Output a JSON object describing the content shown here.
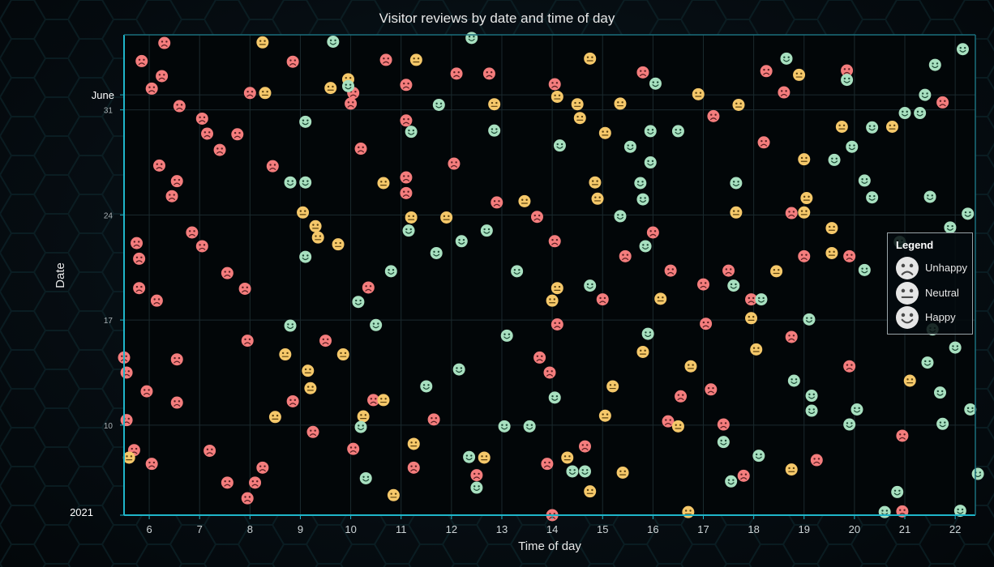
{
  "chart_data": {
    "type": "scatter",
    "title": "Visitor reviews by date and time of day",
    "xlabel": "Time of day",
    "ylabel": "Date",
    "xlim": [
      5.5,
      22.4
    ],
    "x_ticks": [
      6,
      7,
      8,
      9,
      10,
      11,
      12,
      13,
      14,
      15,
      16,
      17,
      18,
      19,
      20,
      21,
      22
    ],
    "y_domain": [
      "2021-05-04",
      "2021-06-05"
    ],
    "y_ticks": [
      {
        "date": "2021-05-04",
        "label": "2021",
        "style": "major"
      },
      {
        "date": "2021-05-10",
        "label": "10",
        "style": "minor"
      },
      {
        "date": "2021-05-17",
        "label": "17",
        "style": "minor"
      },
      {
        "date": "2021-05-24",
        "label": "24",
        "style": "minor"
      },
      {
        "date": "2021-05-31",
        "label": "31",
        "style": "minor"
      },
      {
        "date": "2021-06-01",
        "label": "June",
        "style": "major"
      }
    ],
    "grid": true,
    "legend_position": "right",
    "legend": {
      "title": "Legend",
      "items": [
        {
          "name": "Unhappy",
          "mood": "sad"
        },
        {
          "name": "Neutral",
          "mood": "neutral"
        },
        {
          "name": "Happy",
          "mood": "happy"
        }
      ]
    },
    "series": [
      {
        "name": "Unhappy",
        "color": "#f47d7d",
        "points": [
          [
            5.5,
            "2021-05-14 12:00"
          ],
          [
            5.55,
            "2021-05-13 12:00"
          ],
          [
            5.55,
            "2021-05-10 08:00"
          ],
          [
            5.7,
            "2021-05-08 08:00"
          ],
          [
            5.75,
            "2021-05-22 03:00"
          ],
          [
            5.8,
            "2021-05-21 02:00"
          ],
          [
            5.8,
            "2021-05-19 03:00"
          ],
          [
            5.85,
            "2021-06-03 06:00"
          ],
          [
            5.95,
            "2021-05-12 06:00"
          ],
          [
            6.05,
            "2021-06-01 10:00"
          ],
          [
            6.05,
            "2021-05-07 10:00"
          ],
          [
            6.15,
            "2021-05-18 07:00"
          ],
          [
            6.2,
            "2021-05-27 07:00"
          ],
          [
            6.25,
            "2021-06-02 06:00"
          ],
          [
            6.3,
            "2021-06-04 11:00"
          ],
          [
            6.45,
            "2021-05-25 06:00"
          ],
          [
            6.55,
            "2021-05-26 06:00"
          ],
          [
            6.55,
            "2021-05-14 09:00"
          ],
          [
            6.55,
            "2021-05-11 12:00"
          ],
          [
            6.6,
            "2021-05-31 06:00"
          ],
          [
            6.85,
            "2021-05-22 20:00"
          ],
          [
            7.05,
            "2021-05-30 10:00"
          ],
          [
            7.05,
            "2021-05-21 22:00"
          ],
          [
            7.15,
            "2021-05-29 10:00"
          ],
          [
            7.2,
            "2021-05-08 07:00"
          ],
          [
            7.4,
            "2021-05-28 08:00"
          ],
          [
            7.55,
            "2021-05-20 03:00"
          ],
          [
            7.55,
            "2021-05-06 04:00"
          ],
          [
            7.75,
            "2021-05-29 09:00"
          ],
          [
            7.9,
            "2021-05-19 02:00"
          ],
          [
            7.95,
            "2021-05-05 03:00"
          ],
          [
            7.95,
            "2021-05-15 15:00"
          ],
          [
            8.0,
            "2021-06-01 03:00"
          ],
          [
            8.1,
            "2021-05-06 04:00"
          ],
          [
            8.25,
            "2021-05-07 04:00"
          ],
          [
            8.45,
            "2021-05-27 06:00"
          ],
          [
            8.85,
            "2021-06-03 05:00"
          ],
          [
            8.85,
            "2021-05-11 14:00"
          ],
          [
            9.25,
            "2021-05-09 13:00"
          ],
          [
            9.5,
            "2021-05-15 15:00"
          ],
          [
            10.0,
            "2021-05-31 10:00"
          ],
          [
            10.05,
            "2021-06-01 03:00"
          ],
          [
            10.05,
            "2021-05-08 10:00"
          ],
          [
            10.2,
            "2021-05-28 10:00"
          ],
          [
            10.35,
            "2021-05-19 04:00"
          ],
          [
            10.45,
            "2021-05-11 16:00"
          ],
          [
            10.7,
            "2021-06-03 08:00"
          ],
          [
            11.1,
            "2021-06-01 16:00"
          ],
          [
            11.1,
            "2021-05-30 07:00"
          ],
          [
            11.1,
            "2021-05-26 12:00"
          ],
          [
            11.1,
            "2021-05-25 11:00"
          ],
          [
            11.25,
            "2021-05-07 04:00"
          ],
          [
            11.65,
            "2021-05-10 09:00"
          ],
          [
            12.05,
            "2021-05-27 10:00"
          ],
          [
            12.1,
            "2021-06-02 10:00"
          ],
          [
            12.5,
            "2021-05-06 16:00"
          ],
          [
            12.75,
            "2021-06-02 10:00"
          ],
          [
            12.9,
            "2021-05-24 20:00"
          ],
          [
            13.7,
            "2021-05-23 21:00"
          ],
          [
            13.75,
            "2021-05-14 12:00"
          ],
          [
            13.9,
            "2021-05-07 10:00"
          ],
          [
            13.95,
            "2021-05-13 12:00"
          ],
          [
            14.0,
            "2021-05-04"
          ],
          [
            14.05,
            "2021-06-01 17:00"
          ],
          [
            14.05,
            "2021-05-22 06:00"
          ],
          [
            14.1,
            "2021-05-16 17:00"
          ],
          [
            14.65,
            "2021-05-08 14:00"
          ],
          [
            15.0,
            "2021-05-18 09:00"
          ],
          [
            15.45,
            "2021-05-21 06:00"
          ],
          [
            15.8,
            "2021-06-02 12:00"
          ],
          [
            16.0,
            "2021-05-22 20:00"
          ],
          [
            16.3,
            "2021-05-10 06:00"
          ],
          [
            16.35,
            "2021-05-20 07:00"
          ],
          [
            16.55,
            "2021-05-11 22:00"
          ],
          [
            17.0,
            "2021-05-19 09:00"
          ],
          [
            17.05,
            "2021-05-16 18:00"
          ],
          [
            17.15,
            "2021-05-12 09:00"
          ],
          [
            17.2,
            "2021-05-30 14:00"
          ],
          [
            17.4,
            "2021-05-10 01:00"
          ],
          [
            17.5,
            "2021-05-20 07:00"
          ],
          [
            17.8,
            "2021-05-06 15:00"
          ],
          [
            17.95,
            "2021-05-18 09:00"
          ],
          [
            18.2,
            "2021-05-28 20:00"
          ],
          [
            18.25,
            "2021-06-02 14:00"
          ],
          [
            18.6,
            "2021-06-01 04:00"
          ],
          [
            18.75,
            "2021-05-24 03:00"
          ],
          [
            18.75,
            "2021-05-15 21:00"
          ],
          [
            19.0,
            "2021-05-21 06:00"
          ],
          [
            19.25,
            "2021-05-07 16:00"
          ],
          [
            19.85,
            "2021-06-02 15:00"
          ],
          [
            19.9,
            "2021-05-21 06:00"
          ],
          [
            19.9,
            "2021-05-13 22:00"
          ],
          [
            20.95,
            "2021-05-09 07:00"
          ],
          [
            20.95,
            "2021-05-04 06:00"
          ],
          [
            21.75,
            "2021-05-31 12:00"
          ]
        ]
      },
      {
        "name": "Neutral",
        "color": "#f5c86a",
        "points": [
          [
            5.6,
            "2021-05-07 20:00"
          ],
          [
            8.25,
            "2021-06-04 12:00"
          ],
          [
            8.3,
            "2021-06-01 03:00"
          ],
          [
            8.5,
            "2021-05-10 13:00"
          ],
          [
            8.7,
            "2021-05-14 17:00"
          ],
          [
            9.15,
            "2021-05-13 15:00"
          ],
          [
            9.2,
            "2021-05-12 11:00"
          ],
          [
            9.05,
            "2021-05-24 04:00"
          ],
          [
            9.3,
            "2021-05-23 06:00"
          ],
          [
            9.35,
            "2021-05-22 12:00"
          ],
          [
            9.6,
            "2021-06-01 11:00"
          ],
          [
            9.75,
            "2021-05-22 01:00"
          ],
          [
            9.85,
            "2021-05-14 17:00"
          ],
          [
            9.95,
            "2021-06-02 01:00"
          ],
          [
            10.25,
            "2021-05-10 14:00"
          ],
          [
            10.65,
            "2021-05-26 03:00"
          ],
          [
            10.65,
            "2021-05-11 16:00"
          ],
          [
            10.85,
            "2021-05-05 08:00"
          ],
          [
            11.2,
            "2021-05-23 20:00"
          ],
          [
            11.25,
            "2021-05-08 18:00"
          ],
          [
            11.3,
            "2021-06-03 08:00"
          ],
          [
            11.9,
            "2021-05-23 20:00"
          ],
          [
            12.65,
            "2021-05-07 20:00"
          ],
          [
            12.85,
            "2021-05-31 09:00"
          ],
          [
            13.45,
            "2021-05-24 22:00"
          ],
          [
            14.0,
            "2021-05-18 07:00"
          ],
          [
            14.1,
            "2021-05-19 03:00"
          ],
          [
            14.1,
            "2021-05-31 21:00"
          ],
          [
            14.3,
            "2021-05-07 20:00"
          ],
          [
            14.5,
            "2021-05-31 09:00"
          ],
          [
            14.55,
            "2021-05-30 11:00"
          ],
          [
            14.75,
            "2021-05-05 14:00"
          ],
          [
            14.75,
            "2021-06-03 10:00"
          ],
          [
            14.85,
            "2021-05-26 04:00"
          ],
          [
            14.9,
            "2021-05-25 02:00"
          ],
          [
            15.05,
            "2021-05-10 15:00"
          ],
          [
            15.05,
            "2021-05-29 11:00"
          ],
          [
            15.2,
            "2021-05-12 14:00"
          ],
          [
            15.35,
            "2021-05-31 10:00"
          ],
          [
            15.4,
            "2021-05-06 20:00"
          ],
          [
            15.8,
            "2021-05-14 21:00"
          ],
          [
            16.15,
            "2021-05-18 10:00"
          ],
          [
            16.5,
            "2021-05-09 22:00"
          ],
          [
            16.7,
            "2021-05-04 05:00"
          ],
          [
            16.75,
            "2021-05-13 22:00"
          ],
          [
            16.9,
            "2021-06-01 01:00"
          ],
          [
            17.65,
            "2021-05-24 04:00"
          ],
          [
            17.7,
            "2021-05-31 08:00"
          ],
          [
            17.95,
            "2021-05-17 03:00"
          ],
          [
            18.05,
            "2021-05-15 01:00"
          ],
          [
            18.45,
            "2021-05-20 06:00"
          ],
          [
            18.75,
            "2021-05-07 01:00"
          ],
          [
            18.9,
            "2021-06-02 08:00"
          ],
          [
            19.0,
            "2021-05-27 17:00"
          ],
          [
            19.0,
            "2021-05-24 04:00"
          ],
          [
            19.05,
            "2021-05-25 03:00"
          ],
          [
            19.55,
            "2021-05-23 03:00"
          ],
          [
            19.55,
            "2021-05-21 11:00"
          ],
          [
            19.75,
            "2021-05-29 21:00"
          ],
          [
            20.75,
            "2021-05-29 21:00"
          ],
          [
            21.1,
            "2021-05-12 23:00"
          ]
        ]
      },
      {
        "name": "Happy",
        "color": "#a8e0c0",
        "points": [
          [
            9.1,
            "2021-05-30 05:00"
          ],
          [
            9.1,
            "2021-05-26 04:00"
          ],
          [
            8.8,
            "2021-05-26 04:00"
          ],
          [
            8.8,
            "2021-05-16 15:00"
          ],
          [
            9.1,
            "2021-05-21 05:00"
          ],
          [
            9.65,
            "2021-06-04 13:00"
          ],
          [
            9.95,
            "2021-06-01 14:00"
          ],
          [
            10.15,
            "2021-05-18 05:00"
          ],
          [
            10.2,
            "2021-05-09 21:00"
          ],
          [
            10.3,
            "2021-05-06 11:00"
          ],
          [
            10.5,
            "2021-05-16 16:00"
          ],
          [
            10.8,
            "2021-05-20 06:00"
          ],
          [
            11.15,
            "2021-05-22 23:00"
          ],
          [
            11.2,
            "2021-05-29 13:00"
          ],
          [
            11.5,
            "2021-05-12 14:00"
          ],
          [
            11.7,
            "2021-05-21 11:00"
          ],
          [
            11.75,
            "2021-05-31 08:00"
          ],
          [
            12.15,
            "2021-05-13 17:00"
          ],
          [
            12.2,
            "2021-05-22 06:00"
          ],
          [
            12.35,
            "2021-05-07 21:00"
          ],
          [
            12.4,
            "2021-06-04 19:00"
          ],
          [
            12.5,
            "2021-05-05 20:00"
          ],
          [
            12.7,
            "2021-05-22 23:00"
          ],
          [
            12.85,
            "2021-05-29 15:00"
          ],
          [
            13.05,
            "2021-05-09 22:00"
          ],
          [
            13.1,
            "2021-05-15 23:00"
          ],
          [
            13.3,
            "2021-05-20 06:00"
          ],
          [
            13.55,
            "2021-05-09 22:00"
          ],
          [
            14.05,
            "2021-05-11 20:00"
          ],
          [
            14.15,
            "2021-05-28 15:00"
          ],
          [
            14.4,
            "2021-05-06 22:00"
          ],
          [
            14.65,
            "2021-05-06 22:00"
          ],
          [
            14.75,
            "2021-05-19 07:00"
          ],
          [
            15.35,
            "2021-05-23 22:00"
          ],
          [
            15.55,
            "2021-05-28 13:00"
          ],
          [
            15.75,
            "2021-05-26 03:00"
          ],
          [
            15.8,
            "2021-05-25 01:00"
          ],
          [
            15.85,
            "2021-05-21 22:00"
          ],
          [
            15.9,
            "2021-05-16 02:00"
          ],
          [
            15.95,
            "2021-05-29 14:00"
          ],
          [
            15.95,
            "2021-05-27 12:00"
          ],
          [
            16.05,
            "2021-06-01 18:00"
          ],
          [
            16.5,
            "2021-05-29 14:00"
          ],
          [
            17.4,
            "2021-05-08 21:00"
          ],
          [
            17.55,
            "2021-05-06 06:00"
          ],
          [
            17.6,
            "2021-05-19 07:00"
          ],
          [
            17.65,
            "2021-05-26 03:00"
          ],
          [
            18.1,
            "2021-05-07 23:00"
          ],
          [
            18.15,
            "2021-05-18 09:00"
          ],
          [
            18.65,
            "2021-06-03 10:00"
          ],
          [
            18.8,
            "2021-05-12 23:00"
          ],
          [
            19.1,
            "2021-05-17 01:00"
          ],
          [
            19.15,
            "2021-05-11 23:00"
          ],
          [
            19.15,
            "2021-05-10 23:00"
          ],
          [
            19.6,
            "2021-05-27 16:00"
          ],
          [
            19.85,
            "2021-06-02 00:00"
          ],
          [
            19.9,
            "2021-05-10 01:00"
          ],
          [
            19.95,
            "2021-05-28 13:00"
          ],
          [
            20.05,
            "2021-05-11 01:00"
          ],
          [
            20.2,
            "2021-05-20 08:00"
          ],
          [
            20.2,
            "2021-05-26 07:00"
          ],
          [
            20.35,
            "2021-05-29 20:00"
          ],
          [
            20.35,
            "2021-05-25 04:00"
          ],
          [
            20.6,
            "2021-05-04 05:00"
          ],
          [
            20.85,
            "2021-05-05 13:00"
          ],
          [
            20.9,
            "2021-05-22 05:00"
          ],
          [
            21.0,
            "2021-05-30 19:00"
          ],
          [
            21.3,
            "2021-05-30 19:00"
          ],
          [
            21.4,
            "2021-06-01 00:00"
          ],
          [
            21.45,
            "2021-05-14 04:00"
          ],
          [
            21.5,
            "2021-05-25 05:00"
          ],
          [
            21.6,
            "2021-06-03 00:00"
          ],
          [
            21.55,
            "2021-05-16 09:00"
          ],
          [
            21.7,
            "2021-05-12 04:00"
          ],
          [
            21.75,
            "2021-05-10 02:00"
          ],
          [
            21.9,
            "2021-05-23 04:00"
          ],
          [
            22.0,
            "2021-05-15 04:00"
          ],
          [
            22.1,
            "2021-05-04 07:00"
          ],
          [
            22.15,
            "2021-06-04 01:00"
          ],
          [
            22.25,
            "2021-05-24 02:00"
          ],
          [
            22.3,
            "2021-05-11 01:00"
          ],
          [
            22.45,
            "2021-05-06 18:00"
          ]
        ]
      }
    ]
  }
}
